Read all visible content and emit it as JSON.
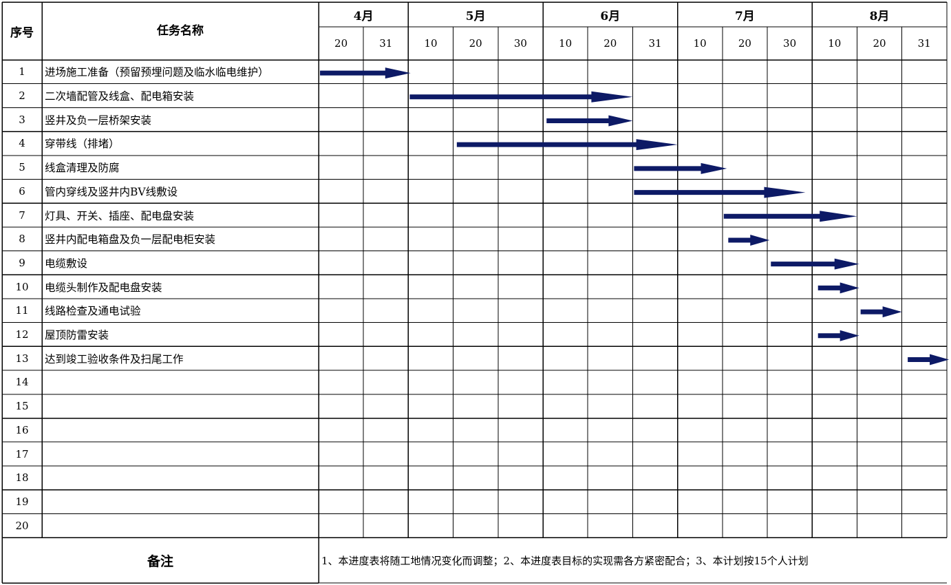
{
  "headers": {
    "seq": "序号",
    "task": "任务名称"
  },
  "months": [
    {
      "label": "4月",
      "days": [
        "20",
        "31"
      ]
    },
    {
      "label": "5月",
      "days": [
        "10",
        "20",
        "30"
      ]
    },
    {
      "label": "6月",
      "days": [
        "10",
        "20",
        "31"
      ]
    },
    {
      "label": "7月",
      "days": [
        "10",
        "20",
        "30"
      ]
    },
    {
      "label": "8月",
      "days": [
        "10",
        "20",
        "31"
      ]
    }
  ],
  "tasks": [
    {
      "no": "1",
      "name": "进场施工准备（预留预埋问题及临水临电维护）"
    },
    {
      "no": "2",
      "name": "二次墙配管及线盒、配电箱安装"
    },
    {
      "no": "3",
      "name": "竖井及负一层桥架安装"
    },
    {
      "no": "4",
      "name": "穿带线（排堵）"
    },
    {
      "no": "5",
      "name": "线盒清理及防腐"
    },
    {
      "no": "6",
      "name": "管内穿线及竖井内BV线敷设"
    },
    {
      "no": "7",
      "name": "灯具、开关、插座、配电盘安装"
    },
    {
      "no": "8",
      "name": "竖井内配电箱盘及负一层配电柜安装"
    },
    {
      "no": "9",
      "name": "电缆敷设"
    },
    {
      "no": "10",
      "name": "电缆头制作及配电盘安装"
    },
    {
      "no": "11",
      "name": "线路检查及通电试验"
    },
    {
      "no": "12",
      "name": "屋顶防雷安装"
    },
    {
      "no": "13",
      "name": "达到竣工验收条件及扫尾工作"
    },
    {
      "no": "14",
      "name": ""
    },
    {
      "no": "15",
      "name": ""
    },
    {
      "no": "16",
      "name": ""
    },
    {
      "no": "17",
      "name": ""
    },
    {
      "no": "18",
      "name": ""
    },
    {
      "no": "19",
      "name": ""
    },
    {
      "no": "20",
      "name": ""
    }
  ],
  "remark": {
    "label": "备注",
    "text": "1、本进度表将随工地情况变化而调整；2、本进度表目标的实现需各方紧密配合；3、本计划按15个人计划"
  },
  "colors": {
    "bar": "#0d1a66",
    "grid": "#000000"
  },
  "chart_data": {
    "type": "gantt",
    "unit": "period column (0 = 4月20, 14 = end of 8月31)",
    "bars": [
      {
        "task": "1",
        "start": 0.0,
        "end": 2.05
      },
      {
        "task": "2",
        "start": 2.0,
        "end": 7.0
      },
      {
        "task": "3",
        "start": 5.05,
        "end": 7.0
      },
      {
        "task": "4",
        "start": 3.05,
        "end": 8.0
      },
      {
        "task": "5",
        "start": 7.0,
        "end": 9.1
      },
      {
        "task": "6",
        "start": 7.0,
        "end": 10.85
      },
      {
        "task": "7",
        "start": 9.0,
        "end": 12.0
      },
      {
        "task": "8",
        "start": 9.1,
        "end": 10.05
      },
      {
        "task": "9",
        "start": 10.05,
        "end": 12.05
      },
      {
        "task": "10",
        "start": 11.1,
        "end": 12.05
      },
      {
        "task": "11",
        "start": 12.05,
        "end": 13.0
      },
      {
        "task": "12",
        "start": 11.1,
        "end": 12.05
      },
      {
        "task": "13",
        "start": 13.1,
        "end": 14.05
      }
    ]
  }
}
